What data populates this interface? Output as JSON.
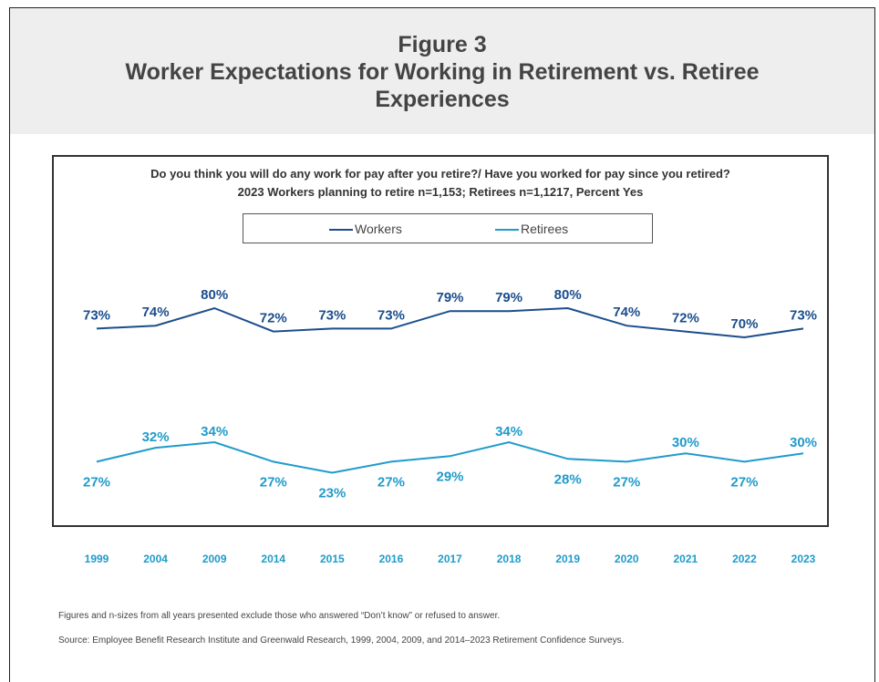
{
  "header": {
    "line1": "Figure 3",
    "line2": "Worker Expectations for Working in Retirement vs. Retiree",
    "line3": "Experiences"
  },
  "question": {
    "line1": "Do you think you will do any work for pay after you retire?/ Have you worked for pay since you retired?",
    "line2": "2023 Workers planning to retire n=1,153; Retirees n=1,1217, Percent Yes"
  },
  "legend": {
    "workers": "Workers",
    "retirees": "Retirees"
  },
  "colors": {
    "workers": "#1b4d8c",
    "retirees": "#1f9bcb",
    "header_bg": "#eeeeee"
  },
  "chart_data": {
    "type": "line",
    "categories": [
      "1999",
      "2004",
      "2009",
      "2014",
      "2015",
      "2016",
      "2017",
      "2018",
      "2019",
      "2020",
      "2021",
      "2022",
      "2023"
    ],
    "series": [
      {
        "name": "Workers",
        "values": [
          73,
          74,
          80,
          72,
          73,
          73,
          79,
          79,
          80,
          74,
          72,
          70,
          73
        ],
        "labels": [
          "73%",
          "74%",
          "80%",
          "72%",
          "73%",
          "73%",
          "79%",
          "79%",
          "80%",
          "74%",
          "72%",
          "70%",
          "73%"
        ]
      },
      {
        "name": "Retirees",
        "values": [
          27,
          32,
          34,
          27,
          23,
          27,
          29,
          34,
          28,
          27,
          30,
          27,
          30
        ],
        "labels": [
          "27%",
          "32%",
          "34%",
          "27%",
          "23%",
          "27%",
          "29%",
          "34%",
          "28%",
          "27%",
          "30%",
          "27%",
          "30%"
        ]
      }
    ],
    "legend_position": "top",
    "grid": false
  },
  "notes": {
    "note1": "Figures and n-sizes from all years presented exclude those who answered “Don’t know” or refused to answer.",
    "source": "Source:  Employee Benefit Research Institute and Greenwald Research, 1999, 2004, 2009, and 2014–2023 Retirement Confidence Surveys."
  }
}
